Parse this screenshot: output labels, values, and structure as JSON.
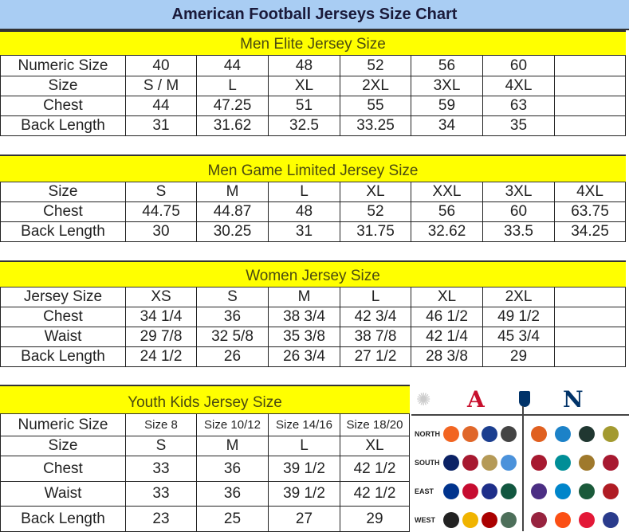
{
  "title": "American Football Jerseys Size Chart",
  "sections": [
    {
      "heading": "Men Elite Jersey Size",
      "rows": [
        [
          "Numeric Size",
          "40",
          "44",
          "48",
          "52",
          "56",
          "60",
          ""
        ],
        [
          "Size",
          "S / M",
          "L",
          "XL",
          "2XL",
          "3XL",
          "4XL",
          ""
        ],
        [
          "Chest",
          "44",
          "47.25",
          "51",
          "55",
          "59",
          "63",
          ""
        ],
        [
          "Back Length",
          "31",
          "31.62",
          "32.5",
          "33.25",
          "34",
          "35",
          ""
        ]
      ]
    },
    {
      "heading": "Men Game Limited Jersey Size",
      "rows": [
        [
          "Size",
          "S",
          "M",
          "L",
          "XL",
          "XXL",
          "3XL",
          "4XL"
        ],
        [
          "Chest",
          "44.75",
          "44.87",
          "48",
          "52",
          "56",
          "60",
          "63.75"
        ],
        [
          "Back Length",
          "30",
          "30.25",
          "31",
          "31.75",
          "32.62",
          "33.5",
          "34.25"
        ]
      ]
    },
    {
      "heading": "Women Jersey Size",
      "rows": [
        [
          "Jersey Size",
          "XS",
          "S",
          "M",
          "L",
          "XL",
          "2XL",
          ""
        ],
        [
          "Chest",
          "34 1/4",
          "36",
          "38 3/4",
          "42 3/4",
          "46 1/2",
          "49 1/2",
          ""
        ],
        [
          "Waist",
          "29 7/8",
          "32 5/8",
          "35 3/8",
          "38 7/8",
          "42 1/4",
          "45 3/4",
          ""
        ],
        [
          "Back Length",
          "24 1/2",
          "26",
          "26 3/4",
          "27 1/2",
          "28 3/8",
          "29",
          ""
        ]
      ]
    },
    {
      "heading": "Youth Kids Jersey Size",
      "rows": [
        [
          "Numeric Size",
          "Size 8",
          "Size 10/12",
          "Size 14/16",
          "Size 18/20"
        ],
        [
          "Size",
          "S",
          "M",
          "L",
          "XL"
        ],
        [
          "Chest",
          "33",
          "36",
          "39 1/2",
          "42 1/2"
        ],
        [
          "Waist",
          "33",
          "36",
          "39 1/2",
          "42 1/2"
        ],
        [
          "Back Length",
          "23",
          "25",
          "27",
          "29"
        ]
      ]
    }
  ],
  "logos": {
    "conference_icons": [
      "afc-logo-icon",
      "nfl-shield-icon",
      "nfc-logo-icon"
    ],
    "divisions": [
      "NORTH",
      "SOUTH",
      "EAST",
      "WEST"
    ],
    "afc_colors": [
      [
        "#f26522",
        "#e0672a",
        "#1b3e8f",
        "#444"
      ],
      [
        "#0b2265",
        "#a71930",
        "#b59a57",
        "#4b92db"
      ],
      [
        "#00338d",
        "#c60c30",
        "#1e2f89",
        "#125740"
      ],
      [
        "#222",
        "#f0b400",
        "#aa0000",
        "#4d6f5a"
      ]
    ],
    "nfc_colors": [
      [
        "#e06020",
        "#1c82c8",
        "#203731",
        "#a39a30"
      ],
      [
        "#a71930",
        "#008e97",
        "#9f792c",
        "#a71930"
      ],
      [
        "#4b2e83",
        "#0085ca",
        "#1a5a3a",
        "#b01c24"
      ],
      [
        "#97233f",
        "#fb4f14",
        "#e31837",
        "#2a3b8c"
      ]
    ]
  }
}
